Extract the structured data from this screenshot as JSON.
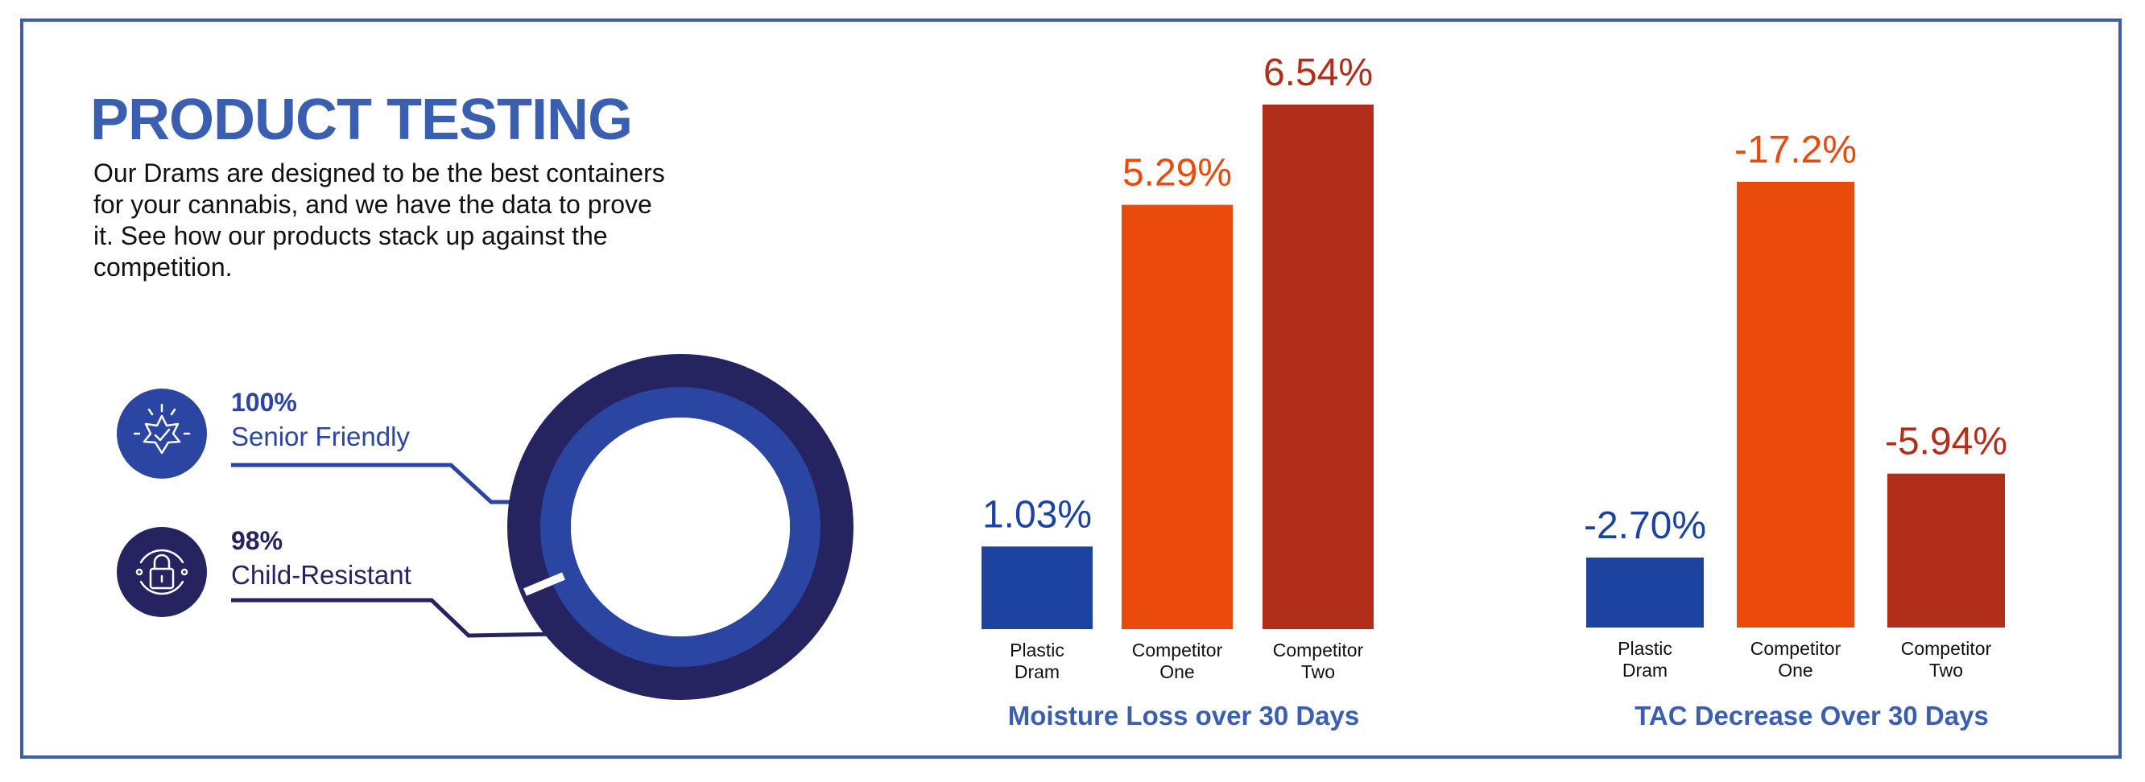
{
  "header": {
    "title": "PRODUCT TESTING",
    "description": "Our Drams are designed to be the best containers for your cannabis, and we have the data to prove it. See how our products stack up against the competition."
  },
  "stats": [
    {
      "percent": "100%",
      "label": "Senior Friendly",
      "icon": "sun-badge-check-icon",
      "color": "#2b45a2"
    },
    {
      "percent": "98%",
      "label": "Child-Resistant",
      "icon": "lock-icon",
      "color": "#252360"
    }
  ],
  "ring": {
    "outer_color": "#252360",
    "inner_color": "#2b45a2"
  },
  "colors": {
    "plastic": "#1c43a0",
    "competitor_one": "#ea4a0c",
    "competitor_two": "#b12e1a",
    "title": "#3a5fb0"
  },
  "chart_data": [
    {
      "type": "bar",
      "title": "Moisture Loss over 30 Days",
      "categories": [
        "Plastic Dram",
        "Competitor One",
        "Competitor Two"
      ],
      "category_lines": [
        [
          "Plastic",
          "Dram"
        ],
        [
          "Competitor",
          "One"
        ],
        [
          "Competitor",
          "Two"
        ]
      ],
      "values": [
        1.03,
        5.29,
        6.54
      ],
      "value_labels": [
        "1.03%",
        "5.29%",
        "6.54%"
      ],
      "ylim": [
        0,
        6.54
      ],
      "grid": false,
      "legend": "none"
    },
    {
      "type": "bar",
      "title": "TAC Decrease Over 30 Days",
      "categories": [
        "Plastic Dram",
        "Competitor One",
        "Competitor Two"
      ],
      "category_lines": [
        [
          "Plastic",
          "Dram"
        ],
        [
          "Competitor",
          "One"
        ],
        [
          "Competitor",
          "Two"
        ]
      ],
      "values": [
        -2.7,
        -17.2,
        -5.94
      ],
      "value_labels": [
        "-2.70%",
        "-17.2%",
        "-5.94%"
      ],
      "ylim": [
        0,
        -17.2
      ],
      "grid": false,
      "legend": "none"
    }
  ]
}
